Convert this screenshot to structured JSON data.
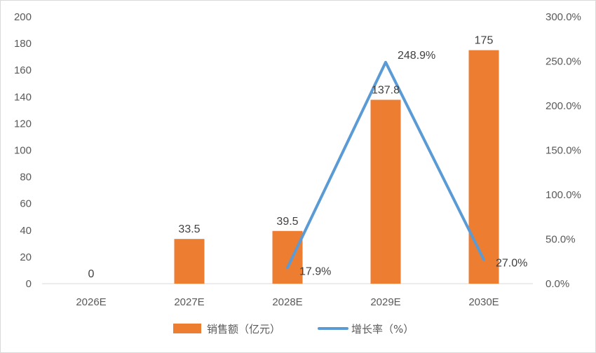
{
  "chart_data": {
    "type": "bar",
    "categories": [
      "2026E",
      "2027E",
      "2028E",
      "2029E",
      "2030E"
    ],
    "series": [
      {
        "name": "销售额（亿元）",
        "type": "bar",
        "axis": "left",
        "color": "#ED7D31",
        "values": [
          0,
          33.5,
          39.5,
          137.8,
          175
        ],
        "labels": [
          "0",
          "33.5",
          "39.5",
          "137.8",
          "175"
        ]
      },
      {
        "name": "增长率（%）",
        "type": "line",
        "axis": "right",
        "color": "#5B9BD5",
        "values": [
          null,
          null,
          17.9,
          248.9,
          27.0
        ],
        "labels": [
          "",
          "",
          "17.9%",
          "248.9%",
          "27.0%"
        ]
      }
    ],
    "y_left": {
      "ylim": [
        0,
        200
      ],
      "ticks": [
        0,
        20,
        40,
        60,
        80,
        100,
        120,
        140,
        160,
        180,
        200
      ],
      "tick_labels": [
        "0",
        "20",
        "40",
        "60",
        "80",
        "100",
        "120",
        "140",
        "160",
        "180",
        "200"
      ]
    },
    "y_right": {
      "ylim": [
        0,
        300
      ],
      "ticks": [
        0,
        50,
        100,
        150,
        200,
        250,
        300
      ],
      "tick_labels": [
        "0.0%",
        "50.0%",
        "100.0%",
        "150.0%",
        "200.0%",
        "250.0%",
        "300.0%"
      ]
    },
    "grid": false,
    "legend": "bottom",
    "title": "",
    "xlabel": "",
    "ylabel": ""
  }
}
